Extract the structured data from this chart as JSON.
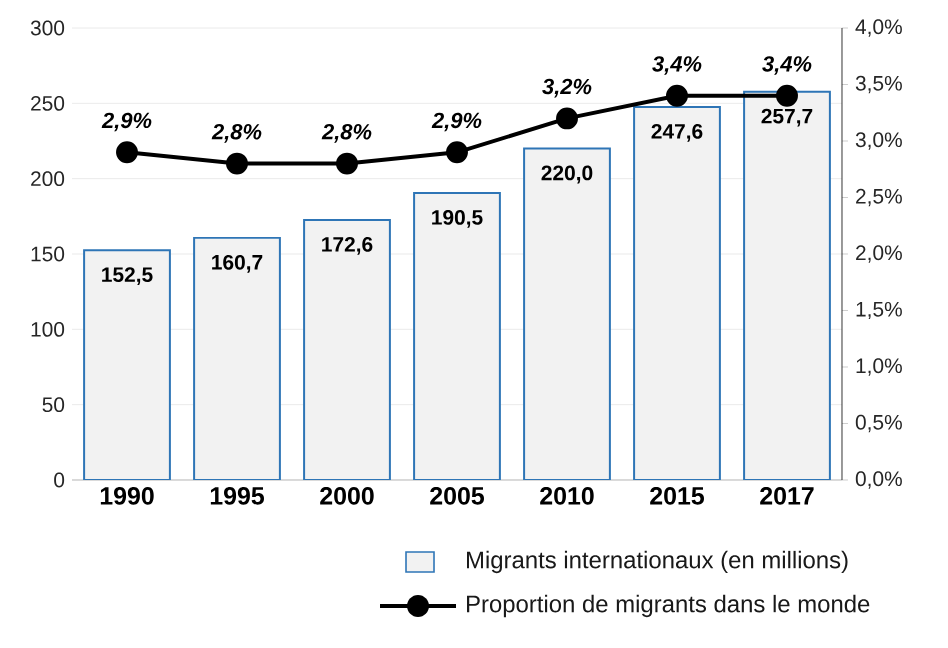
{
  "chart_data": {
    "type": "bar",
    "categories": [
      "1990",
      "1995",
      "2000",
      "2005",
      "2010",
      "2015",
      "2017"
    ],
    "series": [
      {
        "name": "Migrants internationaux (en millions)",
        "color": "#f2f2f2",
        "values": [
          152.5,
          160.7,
          172.6,
          190.5,
          220.0,
          247.6,
          257.7
        ],
        "value_labels": [
          "152,5",
          "160,7",
          "172,6",
          "190,5",
          "220,0",
          "247,6",
          "257,7"
        ]
      },
      {
        "name": "Proportion de migrants dans le monde",
        "type": "line",
        "axis": "y2",
        "marker": "circle",
        "color": "#000000",
        "values": [
          2.9,
          2.8,
          2.8,
          2.9,
          3.2,
          3.4,
          3.4
        ],
        "value_labels": [
          "2,9%",
          "2,8%",
          "2,8%",
          "2,9%",
          "3,2%",
          "3,4%",
          "3,4%"
        ]
      }
    ],
    "ylim": [
      0,
      300
    ],
    "yticks": [
      0,
      50,
      100,
      150,
      200,
      250,
      300
    ],
    "y2lim": [
      0,
      4
    ],
    "y2ticks": [
      {
        "value": 0,
        "label": "0,0%"
      },
      {
        "value": 0.5,
        "label": "0,5%"
      },
      {
        "value": 1,
        "label": "1,0%"
      },
      {
        "value": 1.5,
        "label": "1,5%"
      },
      {
        "value": 2,
        "label": "2,0%"
      },
      {
        "value": 2.5,
        "label": "2,5%"
      },
      {
        "value": 3,
        "label": "3,0%"
      },
      {
        "value": 3.5,
        "label": "3,5%"
      },
      {
        "value": 4,
        "label": "4,0%"
      }
    ],
    "grid": "y",
    "legend": "bottom"
  }
}
